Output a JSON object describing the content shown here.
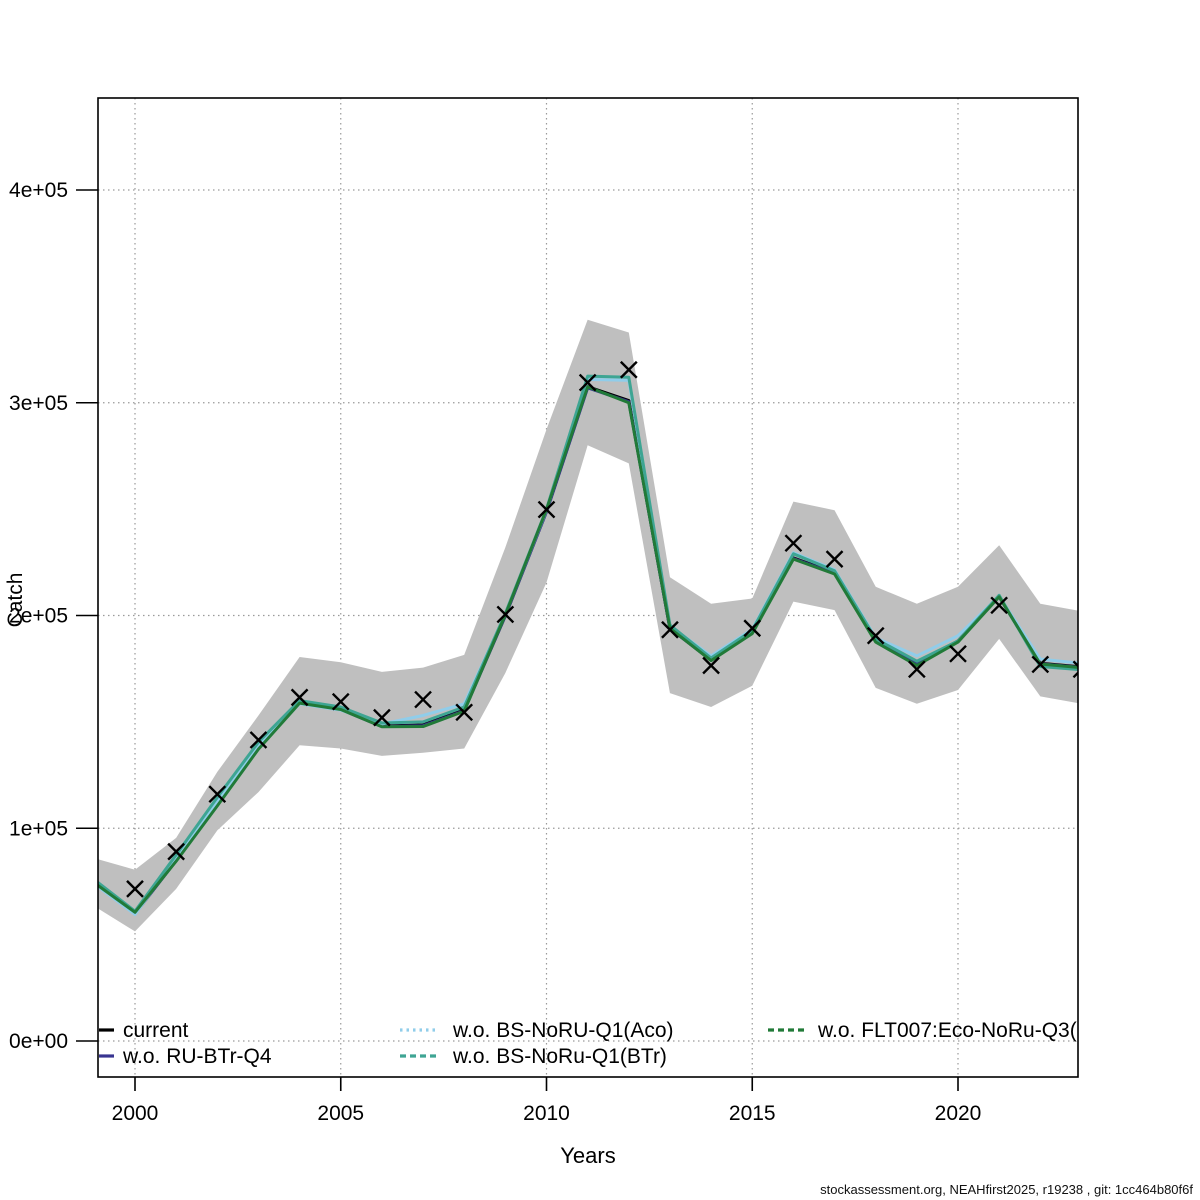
{
  "footer": {
    "text": "stockassessment.org, NEAHfirst2025, r19238 , git: 1cc464b80f6f"
  },
  "chart_data": {
    "type": "line",
    "title": "",
    "xlabel": "Years",
    "ylabel": "Catch",
    "grid": true,
    "legend_position": "bottom-inside",
    "x_ticks": [
      {
        "value": 2000,
        "label": "2000"
      },
      {
        "value": 2005,
        "label": "2005"
      },
      {
        "value": 2010,
        "label": "2010"
      },
      {
        "value": 2015,
        "label": "2015"
      },
      {
        "value": 2020,
        "label": "2020"
      }
    ],
    "y_ticks": [
      {
        "value": 0,
        "label": "0e+00"
      },
      {
        "value": 100000,
        "label": "1e+05"
      },
      {
        "value": 200000,
        "label": "2e+05"
      },
      {
        "value": 300000,
        "label": "3e+05"
      },
      {
        "value": 400000,
        "label": "4e+05"
      }
    ],
    "xlim": [
      1999.1,
      2022.9
    ],
    "ylim": [
      -17000,
      443000
    ],
    "years": [
      1999,
      2000,
      2001,
      2002,
      2003,
      2004,
      2005,
      2006,
      2007,
      2008,
      2009,
      2010,
      2011,
      2012,
      2013,
      2014,
      2015,
      2016,
      2017,
      2018,
      2019,
      2020,
      2021,
      2022,
      2023
    ],
    "band": {
      "name": "confidence-band",
      "color": "#bfbfbf",
      "lower": [
        63500,
        51500,
        71500,
        99000,
        117000,
        139000,
        137500,
        134000,
        135500,
        137500,
        173000,
        215500,
        280000,
        271500,
        163500,
        157000,
        167000,
        206500,
        202500,
        166000,
        158500,
        165000,
        189000,
        162000,
        158500
      ],
      "upper": [
        86000,
        80500,
        95500,
        126500,
        153000,
        180500,
        178000,
        173500,
        175500,
        181500,
        232000,
        287500,
        339000,
        333000,
        218000,
        205500,
        208000,
        253500,
        249500,
        213500,
        205500,
        213500,
        233000,
        205500,
        202000
      ]
    },
    "series": [
      {
        "name": "current",
        "color": "#000000",
        "style": "solid",
        "width": 3.2,
        "values": [
          75000,
          60000,
          85000,
          111000,
          138000,
          159000,
          156000,
          148000,
          148500,
          155500,
          200000,
          249000,
          307500,
          301000,
          194000,
          179000,
          192000,
          227000,
          220000,
          188000,
          177500,
          188000,
          209000,
          177500,
          175800
        ]
      },
      {
        "name": "w.o. RU-BTr-Q4",
        "color": "#383491",
        "style": "solid",
        "width": 3,
        "values": [
          74800,
          59800,
          84800,
          110800,
          137800,
          158800,
          155800,
          147800,
          148200,
          155200,
          199800,
          248800,
          307000,
          300500,
          193800,
          179200,
          191800,
          226800,
          219800,
          187800,
          177000,
          187800,
          208800,
          177300,
          175600
        ]
      },
      {
        "name": "w.o. BS-NoRU-Q1(Aco)",
        "color": "#90cdea",
        "style": "dotted",
        "width": 3,
        "values": [
          74000,
          59500,
          86000,
          112500,
          139000,
          158500,
          155500,
          149000,
          153000,
          158500,
          200500,
          249500,
          311000,
          310500,
          195000,
          181000,
          193500,
          229500,
          221500,
          189500,
          181000,
          190500,
          209000,
          179500,
          177500
        ]
      },
      {
        "name": "w.o. BS-NoRu-Q1(BTr)",
        "color": "#3ea593",
        "style": "dashed",
        "width": 3,
        "values": [
          76000,
          61000,
          87500,
          114500,
          140500,
          160000,
          157000,
          149500,
          150000,
          157000,
          201000,
          250000,
          312500,
          312000,
          195500,
          180000,
          193000,
          229000,
          221000,
          189000,
          178500,
          188000,
          209500,
          176000,
          174500
        ]
      },
      {
        "name": "w.o. FLT007:Eco-NoRu-Q3(",
        "color": "#217a38",
        "style": "dashed",
        "width": 3,
        "values": [
          74500,
          60500,
          84500,
          110500,
          137200,
          158800,
          155800,
          147700,
          147800,
          155000,
          200300,
          249800,
          307500,
          300000,
          194000,
          178800,
          191500,
          226500,
          219500,
          187500,
          176500,
          187500,
          208800,
          177200,
          175500
        ]
      }
    ],
    "observed": {
      "name": "observed-catch",
      "marker": "x",
      "color": "#000000",
      "values": [
        null,
        71500,
        89000,
        116000,
        141500,
        161500,
        159500,
        152000,
        160500,
        154500,
        200500,
        249800,
        309500,
        315500,
        193300,
        176500,
        194000,
        234000,
        226500,
        190500,
        174700,
        182000,
        204800,
        177000,
        174700
      ]
    },
    "legend": {
      "entries": [
        {
          "label": "current",
          "series": 0,
          "col": 0,
          "row": 0
        },
        {
          "label": "w.o. RU-BTr-Q4",
          "series": 1,
          "col": 0,
          "row": 1
        },
        {
          "label": "w.o. BS-NoRU-Q1(Aco)",
          "series": 2,
          "col": 1,
          "row": 0
        },
        {
          "label": "w.o. BS-NoRu-Q1(BTr)",
          "series": 3,
          "col": 1,
          "row": 1
        },
        {
          "label": "w.o. FLT007:Eco-NoRu-Q3(",
          "series": 4,
          "col": 2,
          "row": 0
        }
      ]
    }
  }
}
